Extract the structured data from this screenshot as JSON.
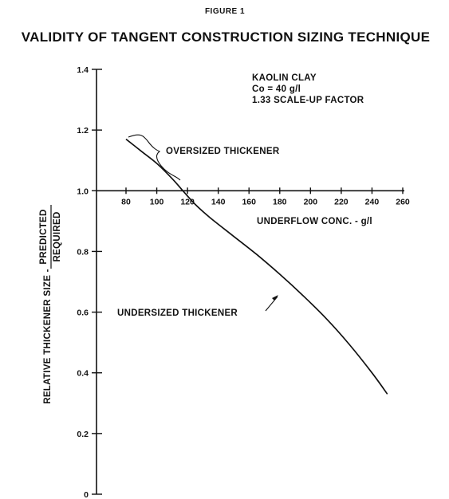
{
  "figure_label": "FIGURE 1",
  "chart_data": {
    "type": "line",
    "title": "VALIDITY OF TANGENT CONSTRUCTION SIZING TECHNIQUE",
    "xlabel": "UNDERFLOW CONC. - g/l",
    "ylabel_prefix": "RELATIVE THICKENER SIZE -",
    "ylabel_fraction": {
      "numerator": "PREDICTED",
      "denominator": "REQUIRED"
    },
    "xlim": [
      80,
      260
    ],
    "ylim": [
      0,
      1.4
    ],
    "x_axis_crosses_y_at": 1.0,
    "x_ticks": [
      "80",
      "100",
      "120",
      "140",
      "160",
      "180",
      "200",
      "220",
      "240",
      "260"
    ],
    "y_ticks": [
      "0",
      "0.2",
      "0.4",
      "0.6",
      "0.8",
      "1.0",
      "1.2",
      "1.4"
    ],
    "grid": false,
    "legend_lines": [
      "KAOLIN CLAY",
      "Co = 40 g/l",
      "1.33 SCALE-UP FACTOR"
    ],
    "series": [
      {
        "x": [
          80,
          90,
          100,
          110,
          117,
          125,
          135,
          150,
          165,
          180,
          195,
          210,
          225,
          240,
          250
        ],
        "y": [
          1.17,
          1.13,
          1.09,
          1.04,
          1.0,
          0.955,
          0.91,
          0.85,
          0.79,
          0.725,
          0.655,
          0.58,
          0.495,
          0.4,
          0.33
        ]
      }
    ],
    "annotations": {
      "oversized": "OVERSIZED THICKENER",
      "undersized": "UNDERSIZED THICKENER"
    }
  }
}
